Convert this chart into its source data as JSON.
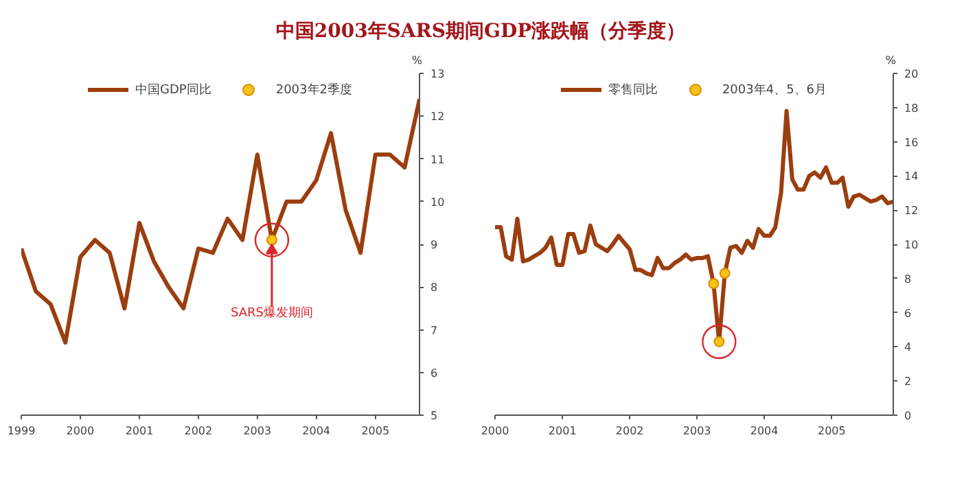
{
  "chart_data": [
    {
      "type": "line",
      "title": "中国2003年SARS期间GDP涨跌幅（分季度）",
      "ylabel": "%",
      "legend": "top",
      "grid": false,
      "marker": "none",
      "line_style": "solid",
      "xlim": [
        "1999-01",
        "2005-10"
      ],
      "xticks": [
        "1999",
        "2000",
        "2001",
        "2002",
        "2003",
        "2004",
        "2005"
      ],
      "ylim": [
        5,
        13
      ],
      "yticks": [
        5,
        6,
        7,
        8,
        9,
        10,
        11,
        12,
        13
      ],
      "annotations": [
        {
          "text": "SARS爆发期间",
          "x": "2003-04",
          "y": 9.1
        }
      ],
      "series": [
        {
          "name": "中国GDP同比",
          "type": "line",
          "color": "#9b3e0f",
          "x": [
            "1999-01",
            "1999-04",
            "1999-07",
            "1999-10",
            "2000-01",
            "2000-04",
            "2000-07",
            "2000-10",
            "2001-01",
            "2001-04",
            "2001-07",
            "2001-10",
            "2002-01",
            "2002-04",
            "2002-07",
            "2002-10",
            "2003-01",
            "2003-04",
            "2003-07",
            "2003-10",
            "2004-01",
            "2004-04",
            "2004-07",
            "2004-10",
            "2005-01",
            "2005-04",
            "2005-07",
            "2005-10"
          ],
          "values": [
            8.9,
            7.9,
            7.6,
            6.7,
            8.7,
            9.1,
            8.8,
            7.5,
            9.5,
            8.6,
            8.0,
            7.5,
            8.9,
            8.8,
            9.6,
            9.1,
            11.1,
            9.1,
            10.0,
            10.0,
            10.5,
            11.6,
            9.8,
            8.8,
            11.1,
            11.1,
            10.8,
            12.4
          ]
        },
        {
          "name": "2003年2季度",
          "type": "scatter",
          "marker": "circle",
          "color": "#f5c518",
          "x": [
            "2003-04"
          ],
          "values": [
            9.1
          ]
        }
      ]
    },
    {
      "type": "line",
      "ylabel": "%",
      "legend": "top",
      "grid": false,
      "marker": "none",
      "line_style": "solid",
      "xlim": [
        "2000-01",
        "2005-12"
      ],
      "xticks": [
        "2000",
        "2001",
        "2002",
        "2003",
        "2004",
        "2005"
      ],
      "ylim": [
        0,
        20
      ],
      "yticks": [
        0,
        2,
        4,
        6,
        8,
        10,
        12,
        14,
        16,
        18,
        20
      ],
      "series": [
        {
          "name": "零售同比",
          "type": "line",
          "color": "#9b3e0f",
          "x": [
            "2000-01",
            "2000-02",
            "2000-03",
            "2000-04",
            "2000-05",
            "2000-06",
            "2000-07",
            "2000-08",
            "2000-09",
            "2000-10",
            "2000-11",
            "2000-12",
            "2001-01",
            "2001-02",
            "2001-03",
            "2001-04",
            "2001-05",
            "2001-06",
            "2001-07",
            "2001-08",
            "2001-09",
            "2001-10",
            "2001-11",
            "2001-12",
            "2002-01",
            "2002-02",
            "2002-03",
            "2002-04",
            "2002-05",
            "2002-06",
            "2002-07",
            "2002-08",
            "2002-09",
            "2002-10",
            "2002-11",
            "2002-12",
            "2003-01",
            "2003-02",
            "2003-03",
            "2003-04",
            "2003-05",
            "2003-06",
            "2003-07",
            "2003-08",
            "2003-09",
            "2003-10",
            "2003-11",
            "2003-12",
            "2004-01",
            "2004-02",
            "2004-03",
            "2004-04",
            "2004-05",
            "2004-06",
            "2004-07",
            "2004-08",
            "2004-09",
            "2004-10",
            "2004-11",
            "2004-12",
            "2005-01",
            "2005-02",
            "2005-03",
            "2005-04",
            "2005-05",
            "2005-06",
            "2005-07",
            "2005-08",
            "2005-09",
            "2005-10",
            "2005-11",
            "2005-12"
          ],
          "values": [
            11.0,
            11.0,
            9.3,
            9.1,
            11.5,
            9.0,
            9.1,
            9.3,
            9.5,
            9.8,
            10.4,
            8.8,
            8.8,
            10.6,
            10.6,
            9.5,
            9.6,
            11.1,
            10.0,
            9.8,
            9.6,
            10.0,
            10.5,
            10.1,
            9.7,
            8.5,
            8.5,
            8.3,
            8.2,
            9.2,
            8.6,
            8.6,
            8.9,
            9.1,
            9.4,
            9.1,
            9.2,
            9.2,
            9.3,
            7.7,
            4.3,
            8.3,
            9.8,
            9.9,
            9.5,
            10.2,
            9.8,
            10.9,
            10.5,
            10.5,
            11.0,
            13.0,
            17.8,
            13.8,
            13.2,
            13.2,
            14.0,
            14.2,
            13.9,
            14.5,
            13.6,
            13.6,
            13.9,
            12.2,
            12.8,
            12.9,
            12.7,
            12.5,
            12.6,
            12.8,
            12.4,
            12.5
          ]
        },
        {
          "name": "2003年4、5、6月",
          "type": "scatter",
          "marker": "circle",
          "color": "#f5c518",
          "x": [
            "2003-04",
            "2003-05",
            "2003-06"
          ],
          "values": [
            7.7,
            4.3,
            8.3
          ]
        }
      ]
    }
  ]
}
